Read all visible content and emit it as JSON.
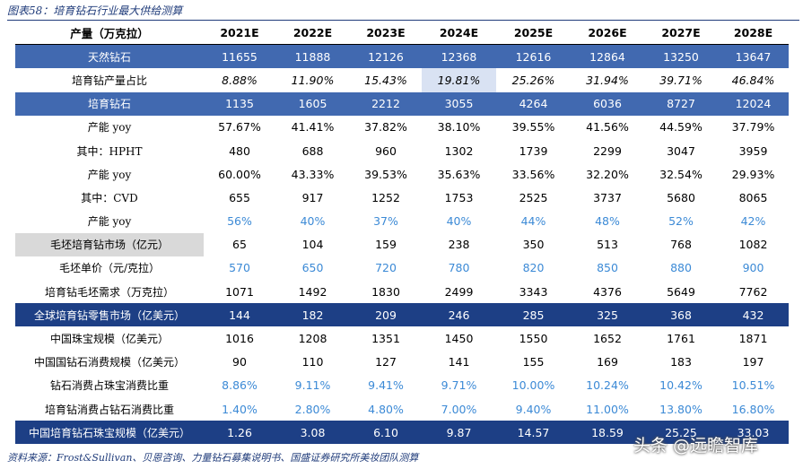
{
  "title": "图表58：培育钻石行业最大供给测算",
  "header": {
    "label": "产量（万克拉）",
    "years": [
      "2021E",
      "2022E",
      "2023E",
      "2024E",
      "2025E",
      "2026E",
      "2027E",
      "2028E"
    ]
  },
  "rows": [
    {
      "label": "天然钻石",
      "values": [
        "11655",
        "11888",
        "12126",
        "12368",
        "12616",
        "12864",
        "13250",
        "13647"
      ]
    },
    {
      "label": "培育钻产量占比",
      "values": [
        "8.88%",
        "11.90%",
        "15.43%",
        "19.81%",
        "25.26%",
        "31.94%",
        "39.71%",
        "46.84%"
      ]
    },
    {
      "label": "培育钻石",
      "values": [
        "1135",
        "1605",
        "2212",
        "3055",
        "4264",
        "6036",
        "8727",
        "12024"
      ]
    },
    {
      "label": "产能 yoy",
      "values": [
        "57.67%",
        "41.41%",
        "37.82%",
        "38.10%",
        "39.55%",
        "41.56%",
        "44.59%",
        "37.79%"
      ]
    },
    {
      "label": "其中：HPHT",
      "values": [
        "480",
        "688",
        "960",
        "1302",
        "1739",
        "2299",
        "3047",
        "3959"
      ]
    },
    {
      "label": "产能 yoy",
      "values": [
        "60.00%",
        "43.33%",
        "39.53%",
        "35.63%",
        "33.56%",
        "32.20%",
        "32.54%",
        "29.93%"
      ]
    },
    {
      "label": "其中：CVD",
      "values": [
        "655",
        "917",
        "1252",
        "1753",
        "2525",
        "3737",
        "5680",
        "8065"
      ]
    },
    {
      "label": "产能 yoy",
      "values": [
        "56%",
        "40%",
        "37%",
        "40%",
        "44%",
        "48%",
        "52%",
        "42%"
      ]
    },
    {
      "label": "毛坯培育钻市场（亿元）",
      "values": [
        "65",
        "104",
        "159",
        "238",
        "350",
        "513",
        "768",
        "1082"
      ]
    },
    {
      "label": "毛坯单价（元/克拉）",
      "values": [
        "570",
        "650",
        "720",
        "780",
        "820",
        "850",
        "880",
        "900"
      ]
    },
    {
      "label": "培育钻毛坯需求（万克拉）",
      "values": [
        "1071",
        "1492",
        "1830",
        "2499",
        "3343",
        "4376",
        "5649",
        "7762"
      ]
    },
    {
      "label": "全球培育钻零售市场（亿美元）",
      "values": [
        "144",
        "182",
        "209",
        "246",
        "285",
        "325",
        "368",
        "432"
      ]
    },
    {
      "label": "中国珠宝规模（亿美元）",
      "values": [
        "1016",
        "1208",
        "1351",
        "1450",
        "1550",
        "1652",
        "1761",
        "1871"
      ]
    },
    {
      "label": "中国国钻石消费规模（亿美元）",
      "values": [
        "90",
        "110",
        "127",
        "141",
        "155",
        "169",
        "183",
        "197"
      ]
    },
    {
      "label": "钻石消费占珠宝消费比重",
      "values": [
        "8.86%",
        "9.11%",
        "9.41%",
        "9.71%",
        "10.00%",
        "10.24%",
        "10.42%",
        "10.51%"
      ]
    },
    {
      "label": "培育钻消费占钻石消费比重",
      "values": [
        "1.40%",
        "2.80%",
        "4.80%",
        "7.00%",
        "9.40%",
        "11.00%",
        "13.80%",
        "16.80%"
      ]
    },
    {
      "label": "中国培育钻石珠宝规模（亿美元）",
      "values": [
        "1.26",
        "3.08",
        "6.10",
        "9.87",
        "14.57",
        "18.59",
        "25.25",
        "33.03"
      ]
    }
  ],
  "source": "资料来源：Frost&Sullivan、贝恩咨询、力量钻石募集说明书、国盛证券研究所美妆团队测算",
  "watermark": "头条 @远瞻智库"
}
